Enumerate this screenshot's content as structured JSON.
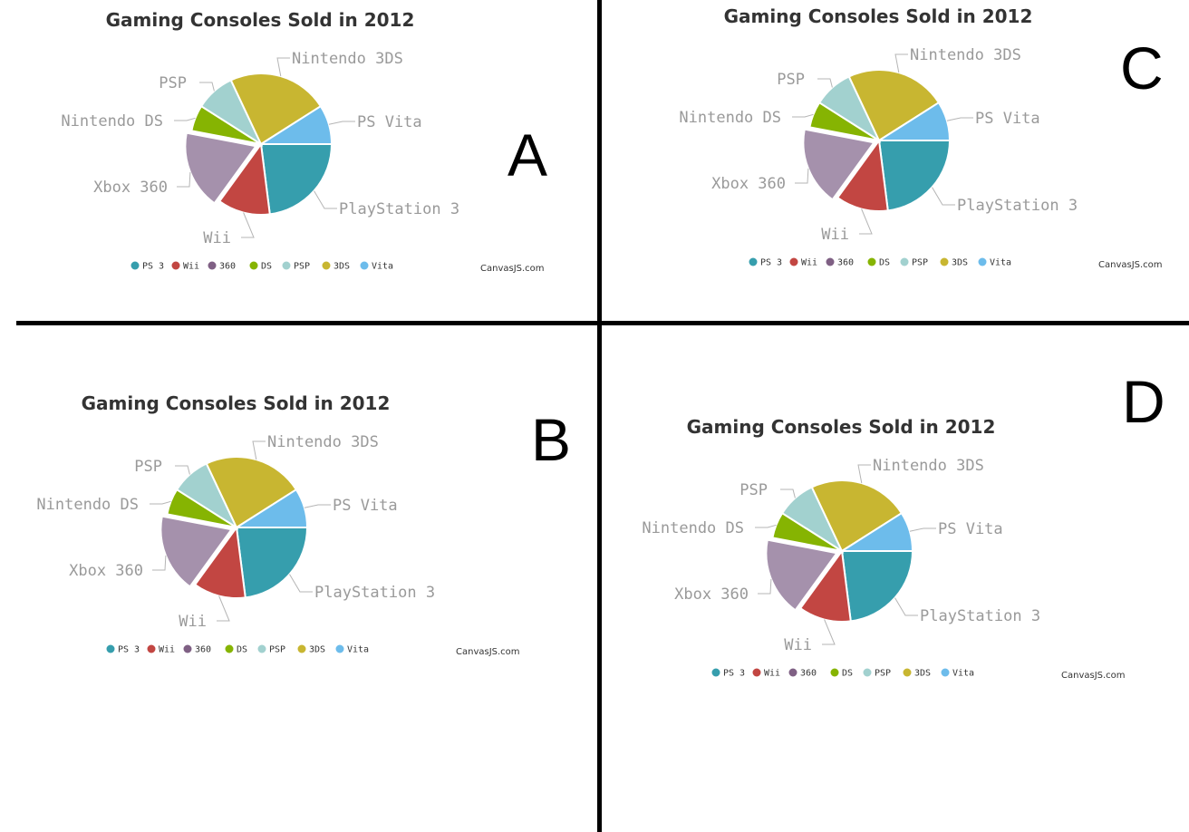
{
  "panel_letters": {
    "a": "A",
    "b": "B",
    "c": "C",
    "d": "D"
  },
  "chart_data": [
    {
      "panel": "A",
      "type": "pie",
      "title": "Gaming Consoles Sold in 2012",
      "credit": "CanvasJS.com",
      "exploded": "Xbox 360",
      "slices": [
        {
          "label": "PlayStation 3",
          "legend": "PS 3",
          "value": 23,
          "color": "#369EAD"
        },
        {
          "label": "Wii",
          "legend": "Wii",
          "value": 12,
          "color": "#C24642"
        },
        {
          "label": "Xbox 360",
          "legend": "360",
          "value": 18,
          "color": "#A591AC"
        },
        {
          "label": "Nintendo DS",
          "legend": "DS",
          "value": 6,
          "color": "#86B402"
        },
        {
          "label": "PSP",
          "legend": "PSP",
          "value": 9,
          "color": "#A2D1CF"
        },
        {
          "label": "Nintendo 3DS",
          "legend": "3DS",
          "value": 23,
          "color": "#C8B631"
        },
        {
          "label": "PS Vita",
          "legend": "Vita",
          "value": 9,
          "color": "#6DBCEB"
        }
      ],
      "legend_marker_colors": [
        "#369EAD",
        "#C24642",
        "#7F6084",
        "#86B402",
        "#A2D1CF",
        "#C8B631",
        "#6DBCEB"
      ]
    },
    {
      "panel": "B",
      "type": "pie",
      "title": "Gaming Consoles Sold in 2012",
      "credit": "CanvasJS.com",
      "exploded": "Xbox 360",
      "slices": [
        {
          "label": "PlayStation 3",
          "legend": "PS 3",
          "value": 23,
          "color": "#369EAD"
        },
        {
          "label": "Wii",
          "legend": "Wii",
          "value": 12,
          "color": "#C24642"
        },
        {
          "label": "Xbox 360",
          "legend": "360",
          "value": 18,
          "color": "#A591AC"
        },
        {
          "label": "Nintendo DS",
          "legend": "DS",
          "value": 6,
          "color": "#86B402"
        },
        {
          "label": "PSP",
          "legend": "PSP",
          "value": 9,
          "color": "#A2D1CF"
        },
        {
          "label": "Nintendo 3DS",
          "legend": "3DS",
          "value": 23,
          "color": "#C8B631"
        },
        {
          "label": "PS Vita",
          "legend": "Vita",
          "value": 9,
          "color": "#6DBCEB"
        }
      ],
      "legend_marker_colors": [
        "#369EAD",
        "#C24642",
        "#7F6084",
        "#86B402",
        "#A2D1CF",
        "#C8B631",
        "#6DBCEB"
      ]
    },
    {
      "panel": "C",
      "type": "pie",
      "title": "Gaming Consoles Sold in 2012",
      "credit": "CanvasJS.com",
      "exploded": "Xbox 360",
      "slices": [
        {
          "label": "PlayStation 3",
          "legend": "PS 3",
          "value": 23,
          "color": "#369EAD"
        },
        {
          "label": "Wii",
          "legend": "Wii",
          "value": 12,
          "color": "#C24642"
        },
        {
          "label": "Xbox 360",
          "legend": "360",
          "value": 18,
          "color": "#A591AC"
        },
        {
          "label": "Nintendo DS",
          "legend": "DS",
          "value": 6,
          "color": "#86B402"
        },
        {
          "label": "PSP",
          "legend": "PSP",
          "value": 9,
          "color": "#A2D1CF"
        },
        {
          "label": "Nintendo 3DS",
          "legend": "3DS",
          "value": 23,
          "color": "#C8B631"
        },
        {
          "label": "PS Vita",
          "legend": "Vita",
          "value": 9,
          "color": "#6DBCEB"
        }
      ],
      "legend_marker_colors": [
        "#369EAD",
        "#C24642",
        "#7F6084",
        "#86B402",
        "#A2D1CF",
        "#C8B631",
        "#6DBCEB"
      ]
    },
    {
      "panel": "D",
      "type": "pie",
      "title": "Gaming Consoles Sold in 2012",
      "credit": "CanvasJS.com",
      "exploded": "Xbox 360",
      "slices": [
        {
          "label": "PlayStation 3",
          "legend": "PS 3",
          "value": 23,
          "color": "#369EAD"
        },
        {
          "label": "Wii",
          "legend": "Wii",
          "value": 12,
          "color": "#C24642"
        },
        {
          "label": "Xbox 360",
          "legend": "360",
          "value": 18,
          "color": "#A591AC"
        },
        {
          "label": "Nintendo DS",
          "legend": "DS",
          "value": 6,
          "color": "#86B402"
        },
        {
          "label": "PSP",
          "legend": "PSP",
          "value": 9,
          "color": "#A2D1CF"
        },
        {
          "label": "Nintendo 3DS",
          "legend": "3DS",
          "value": 23,
          "color": "#C8B631"
        },
        {
          "label": "PS Vita",
          "legend": "Vita",
          "value": 9,
          "color": "#6DBCEB"
        }
      ],
      "legend_marker_colors": [
        "#369EAD",
        "#C24642",
        "#7F6084",
        "#86B402",
        "#A2D1CF",
        "#C8B631",
        "#6DBCEB"
      ]
    }
  ]
}
